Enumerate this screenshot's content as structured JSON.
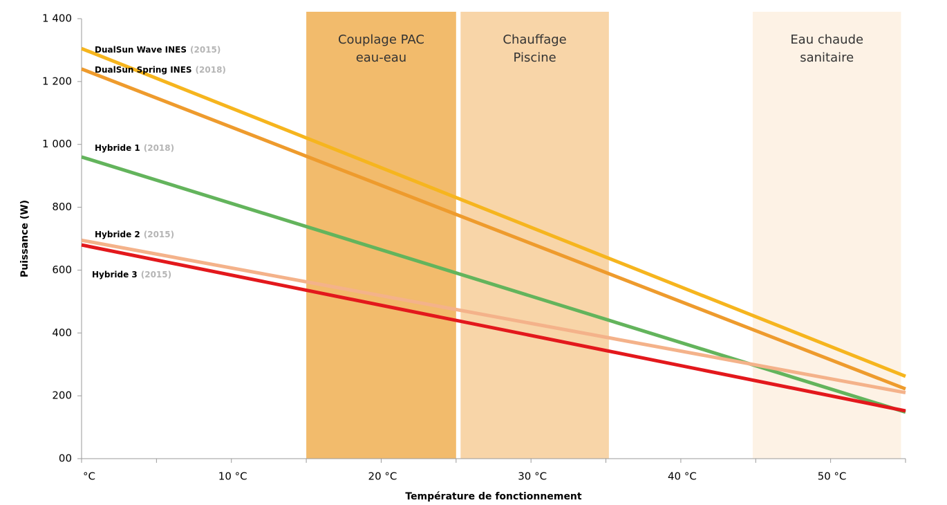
{
  "chart_data": {
    "type": "line",
    "y_label": "Puissance (W)",
    "x_label": "Température de fonctionnement",
    "x": [
      0,
      55
    ],
    "xlim": [
      0,
      55
    ],
    "ylim": [
      0,
      1400
    ],
    "xticks": [
      {
        "value": 0,
        "label": "°C"
      },
      {
        "value": 10,
        "label": "10 °C"
      },
      {
        "value": 20,
        "label": "20 °C"
      },
      {
        "value": 30,
        "label": "30 °C"
      },
      {
        "value": 40,
        "label": "40 °C"
      },
      {
        "value": 50,
        "label": "50 °C"
      }
    ],
    "xminor_ticks": [
      5,
      15,
      25,
      35,
      45,
      55
    ],
    "yticks": [
      {
        "value": 0,
        "label": "00"
      },
      200,
      400,
      600,
      800,
      {
        "value": 1000,
        "label": "1 000"
      },
      {
        "value": 1200,
        "label": "1 200"
      },
      {
        "value": 1400,
        "label": "1 400"
      }
    ],
    "grid": false,
    "zones": [
      {
        "lines": [
          "Couplage PAC",
          "eau-eau"
        ],
        "range": [
          15,
          25
        ],
        "color": "#f2bb6c"
      },
      {
        "lines": [
          "Chauffage",
          "Piscine"
        ],
        "range": [
          25.3,
          35.2
        ],
        "color": "#f8d5a8"
      },
      {
        "lines": [
          "Eau chaude",
          "sanitaire"
        ],
        "range": [
          44.8,
          54.7
        ],
        "color": "#fdf2e5"
      }
    ],
    "series": [
      {
        "name": "DualSun Wave INES",
        "year_label": "(2015)",
        "color": "#f6b51e",
        "values": [
          1305,
          262
        ]
      },
      {
        "name": "DualSun Spring INES",
        "year_label": "(2018)",
        "color": "#ee9b2d",
        "values": [
          1240,
          222
        ]
      },
      {
        "name": "Hybride 1",
        "year_label": "(2018)",
        "color": "#63b45c",
        "values": [
          960,
          148
        ]
      },
      {
        "name": "Hybride 2",
        "year_label": "(2015)",
        "color": "#f4b28a",
        "values": [
          695,
          210
        ]
      },
      {
        "name": "Hybride 3",
        "year_label": "(2015)",
        "color": "#e3181c",
        "values": [
          680,
          152
        ]
      }
    ]
  }
}
